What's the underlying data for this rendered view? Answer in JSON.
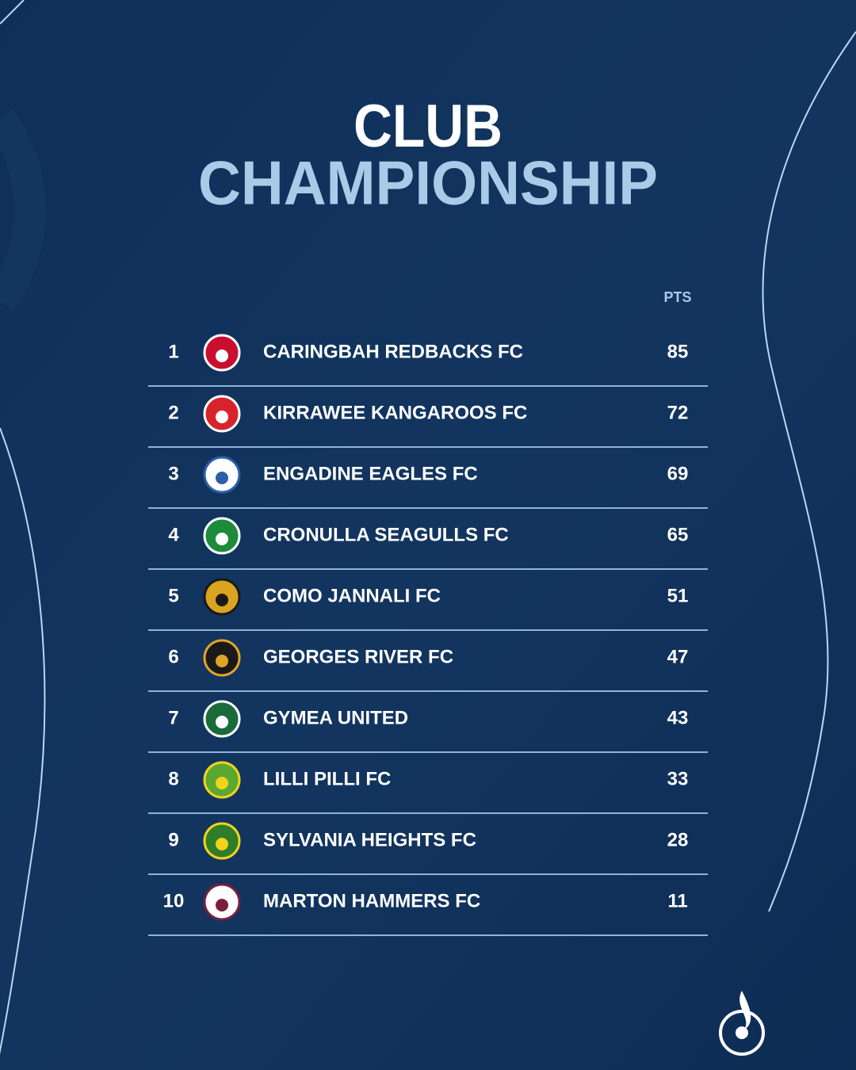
{
  "title": {
    "line1": "CLUB",
    "line2": "CHAMPIONSHIP"
  },
  "table": {
    "header": "PTS",
    "rows": [
      [
        1,
        "CARINGBAH REDBACKS FC",
        85
      ],
      [
        2,
        "KIRRAWEE KANGAROOS FC",
        72
      ],
      [
        3,
        "ENGADINE EAGLES FC",
        69
      ],
      [
        4,
        "CRONULLA SEAGULLS FC",
        65
      ],
      [
        5,
        "COMO JANNALI FC",
        51
      ],
      [
        6,
        "GEORGES RIVER FC",
        47
      ],
      [
        7,
        "GYMEA UNITED",
        43
      ],
      [
        8,
        "LILLI PILLI FC",
        33
      ],
      [
        9,
        "SYLVANIA HEIGHTS FC",
        28
      ],
      [
        10,
        "MARTON HAMMERS FC",
        11
      ]
    ]
  }
}
